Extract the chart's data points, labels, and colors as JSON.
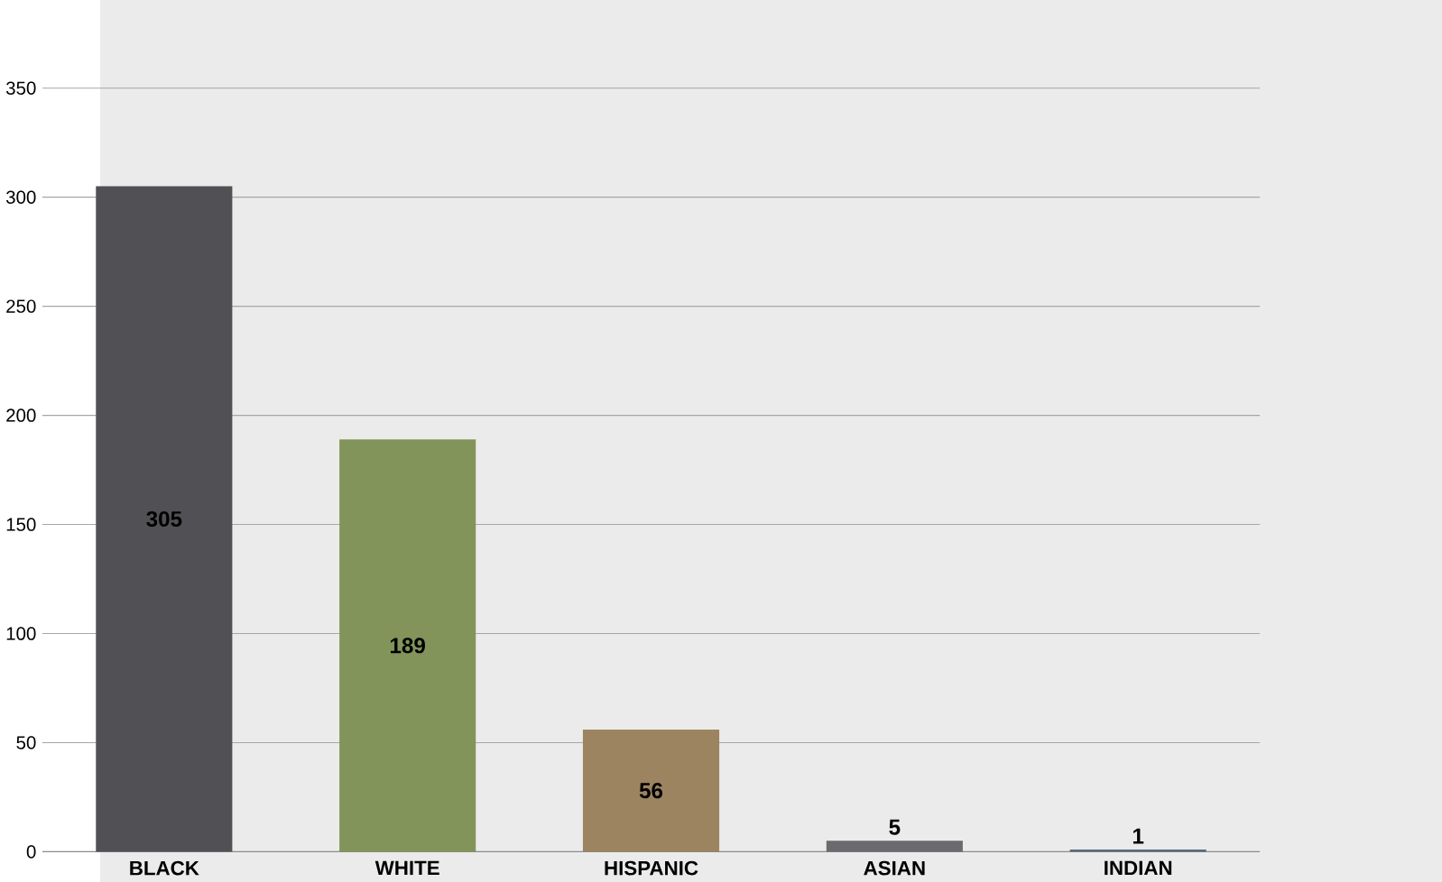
{
  "chart_data": {
    "type": "bar",
    "categories": [
      "BLACK",
      "WHITE",
      "HISPANIC",
      "ASIAN",
      "INDIAN"
    ],
    "values": [
      305,
      189,
      56,
      5,
      1
    ],
    "colors": [
      "#515054",
      "#82945a",
      "#9c8461",
      "#6b6a6e",
      "#5a6b7a"
    ],
    "ylim": [
      0,
      350
    ],
    "yticks": [
      0,
      50,
      100,
      150,
      200,
      250,
      300,
      350
    ],
    "grid": "y",
    "data_labels": true
  }
}
